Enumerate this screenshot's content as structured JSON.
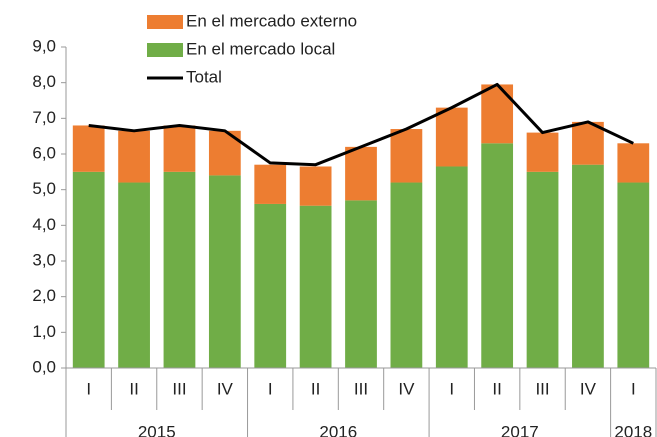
{
  "chart_data": {
    "type": "stacked-bar-line",
    "categories": [
      "I",
      "II",
      "III",
      "IV",
      "I",
      "II",
      "III",
      "IV",
      "I",
      "II",
      "III",
      "IV",
      "I"
    ],
    "groups": [
      {
        "label": "2015",
        "count": 4
      },
      {
        "label": "2016",
        "count": 4
      },
      {
        "label": "2017",
        "count": 4
      },
      {
        "label": "2018",
        "count": 1
      }
    ],
    "series": [
      {
        "name": "En el mercado externo",
        "color": "#ed7d31",
        "kind": "bar",
        "values": [
          1.3,
          1.45,
          1.3,
          1.25,
          1.1,
          1.1,
          1.5,
          1.5,
          1.65,
          1.65,
          1.1,
          1.2,
          1.1
        ]
      },
      {
        "name": "En el mercado local",
        "color": "#70ad47",
        "kind": "bar",
        "values": [
          5.5,
          5.2,
          5.5,
          5.4,
          4.6,
          4.55,
          4.7,
          5.2,
          5.65,
          6.3,
          5.5,
          5.7,
          5.2
        ]
      },
      {
        "name": "Total",
        "color": "#000000",
        "kind": "line",
        "values": [
          6.8,
          6.65,
          6.8,
          6.65,
          5.75,
          5.7,
          6.2,
          6.7,
          7.3,
          7.95,
          6.6,
          6.9,
          6.3
        ]
      }
    ],
    "stack_order": [
      1,
      0
    ],
    "ylim": [
      0,
      9
    ],
    "yticks": [
      {
        "value": 0,
        "label": "0,0"
      },
      {
        "value": 1,
        "label": "1,0"
      },
      {
        "value": 2,
        "label": "2,0"
      },
      {
        "value": 3,
        "label": "3,0"
      },
      {
        "value": 4,
        "label": "4,0"
      },
      {
        "value": 5,
        "label": "5,0"
      },
      {
        "value": 6,
        "label": "6,0"
      },
      {
        "value": 7,
        "label": "7,0"
      },
      {
        "value": 8,
        "label": "8,0"
      },
      {
        "value": 9,
        "label": "9,0"
      }
    ],
    "grid": false
  }
}
